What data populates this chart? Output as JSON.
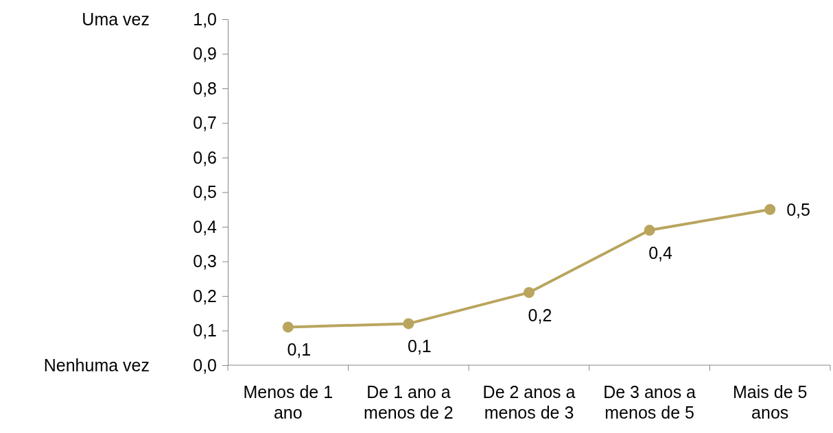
{
  "chart_data": {
    "type": "line",
    "categories": [
      "Menos de 1 ano",
      "De 1 ano a menos de 2",
      "De 2 anos a menos de 3",
      "De 3 anos a menos de 5",
      "Mais de 5 anos"
    ],
    "series": [
      {
        "color": "#b9a55e",
        "values": [
          0.11,
          0.12,
          0.21,
          0.39,
          0.45
        ],
        "value_labels": [
          "0,1",
          "0,1",
          "0,2",
          "0,4",
          "0,5"
        ]
      }
    ],
    "ylim": [
      0,
      1
    ],
    "yticks": [
      {
        "value": 0,
        "label": "0,0"
      },
      {
        "value": 0.1,
        "label": "0,1"
      },
      {
        "value": 0.2,
        "label": "0,2"
      },
      {
        "value": 0.3,
        "label": "0,3"
      },
      {
        "value": 0.4,
        "label": "0,4"
      },
      {
        "value": 0.5,
        "label": "0,5"
      },
      {
        "value": 0.6,
        "label": "0,6"
      },
      {
        "value": 0.7,
        "label": "0,7"
      },
      {
        "value": 0.8,
        "label": "0,8"
      },
      {
        "value": 0.9,
        "label": "0,9"
      },
      {
        "value": 1,
        "label": "1,0"
      }
    ],
    "annotations": [
      "Uma vez",
      "Nenhuma vez"
    ],
    "marker": "circle",
    "line_style": "solid",
    "grid": false
  }
}
